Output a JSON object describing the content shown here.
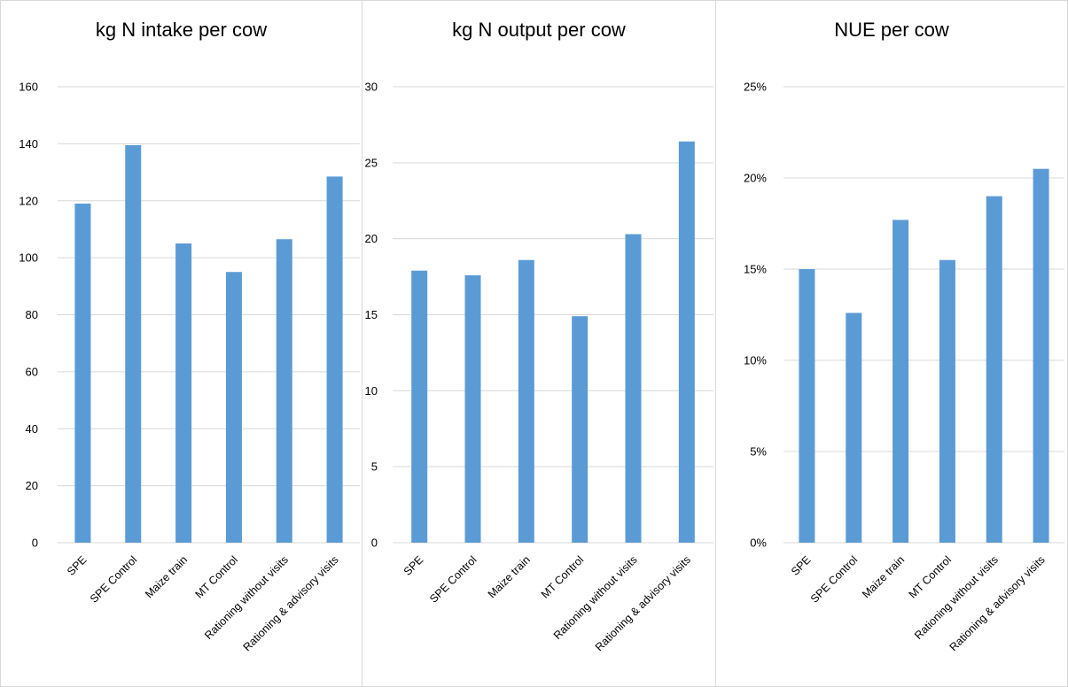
{
  "chart_data": [
    {
      "type": "bar",
      "title": "kg N intake per cow",
      "categories": [
        "SPE",
        "SPE Control",
        "Maize train",
        "MT Control",
        "Rationing without visits",
        "Rationing & advisory visits"
      ],
      "values": [
        119,
        139.5,
        105,
        95,
        106.5,
        128.5
      ],
      "ylim": [
        0,
        160
      ],
      "yticks": [
        0,
        20,
        40,
        60,
        80,
        100,
        120,
        140,
        160
      ],
      "ytick_labels": [
        "0",
        "20",
        "40",
        "60",
        "80",
        "100",
        "120",
        "140",
        "160"
      ],
      "xlabel": "",
      "ylabel": "",
      "grid": true,
      "bar_color": "#5b9bd5"
    },
    {
      "type": "bar",
      "title": "kg N output per cow",
      "categories": [
        "SPE",
        "SPE Control",
        "Maize train",
        "MT Control",
        "Rationing without visits",
        "Rationing & advisory visits"
      ],
      "values": [
        17.9,
        17.6,
        18.6,
        14.9,
        20.3,
        26.4
      ],
      "ylim": [
        0,
        30
      ],
      "yticks": [
        0,
        5,
        10,
        15,
        20,
        25,
        30
      ],
      "ytick_labels": [
        "0",
        "5",
        "10",
        "15",
        "20",
        "25",
        "30"
      ],
      "xlabel": "",
      "ylabel": "",
      "grid": true,
      "bar_color": "#5b9bd5"
    },
    {
      "type": "bar",
      "title": "NUE per cow",
      "categories": [
        "SPE",
        "SPE Control",
        "Maize train",
        "MT Control",
        "Rationing without visits",
        "Rationing & advisory visits"
      ],
      "values": [
        0.15,
        0.126,
        0.177,
        0.155,
        0.19,
        0.205
      ],
      "ylim": [
        0,
        0.25
      ],
      "yticks": [
        0,
        0.05,
        0.1,
        0.15,
        0.2,
        0.25
      ],
      "ytick_labels": [
        "0%",
        "5%",
        "10%",
        "15%",
        "20%",
        "25%"
      ],
      "xlabel": "",
      "ylabel": "",
      "grid": true,
      "bar_color": "#5b9bd5"
    }
  ]
}
